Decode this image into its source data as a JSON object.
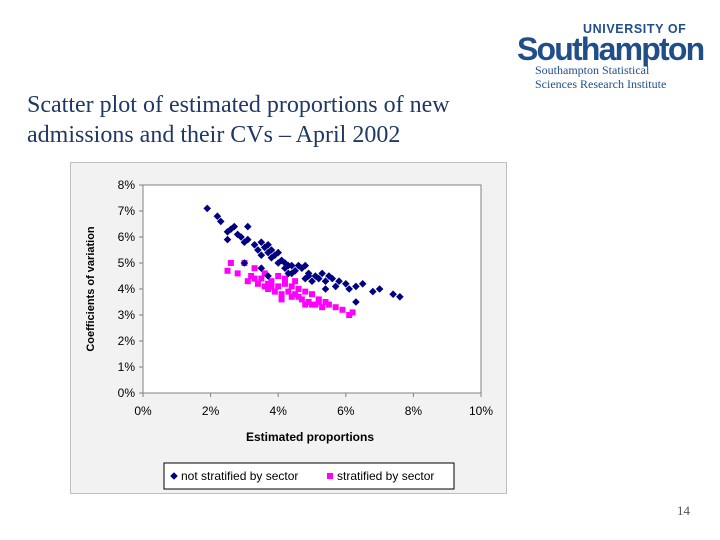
{
  "slide": {
    "title_line1": "Scatter plot of estimated proportions of new",
    "title_line2": "admissions and their CVs – April 2002",
    "page_number": "14"
  },
  "logo": {
    "line1": "UNIVERSITY OF",
    "line2": "Southampton",
    "line3": "Southampton Statistical",
    "line4": "Sciences Research Institute"
  },
  "colors": {
    "title": "#1f3864",
    "not_stratified": "#000080",
    "stratified": "#ff00ff",
    "frame_bg": "#f2f2f2",
    "plot_bg": "#ffffff"
  },
  "chart_data": {
    "type": "scatter",
    "xlabel": "Estimated proportions",
    "ylabel": "Coefficients of variation",
    "xlim": [
      0,
      10
    ],
    "ylim": [
      0,
      8
    ],
    "x_ticks": [
      0,
      2,
      4,
      6,
      8,
      10
    ],
    "y_ticks": [
      0,
      1,
      2,
      3,
      4,
      5,
      6,
      7,
      8
    ],
    "x_tick_labels": [
      "0%",
      "2%",
      "4%",
      "6%",
      "8%",
      "10%"
    ],
    "y_tick_labels": [
      "0%",
      "1%",
      "2%",
      "3%",
      "4%",
      "5%",
      "6%",
      "7%",
      "8%"
    ],
    "grid": false,
    "legend_position": "bottom",
    "series": [
      {
        "name": "not stratified by sector",
        "marker": "diamond",
        "color": "#000080",
        "points": [
          [
            1.9,
            7.1
          ],
          [
            2.2,
            6.8
          ],
          [
            2.3,
            6.6
          ],
          [
            2.5,
            6.2
          ],
          [
            2.6,
            6.3
          ],
          [
            2.7,
            6.4
          ],
          [
            2.5,
            5.9
          ],
          [
            2.8,
            6.1
          ],
          [
            2.9,
            6.0
          ],
          [
            3.0,
            5.8
          ],
          [
            3.1,
            5.9
          ],
          [
            3.1,
            6.4
          ],
          [
            3.3,
            5.7
          ],
          [
            3.4,
            5.5
          ],
          [
            3.5,
            5.8
          ],
          [
            3.5,
            5.3
          ],
          [
            3.6,
            5.6
          ],
          [
            3.7,
            5.4
          ],
          [
            3.7,
            5.7
          ],
          [
            3.8,
            5.2
          ],
          [
            3.8,
            5.5
          ],
          [
            3.9,
            5.3
          ],
          [
            4.0,
            5.4
          ],
          [
            4.0,
            5.0
          ],
          [
            4.1,
            5.1
          ],
          [
            4.2,
            4.8
          ],
          [
            4.2,
            5.0
          ],
          [
            4.3,
            4.9
          ],
          [
            4.4,
            4.6
          ],
          [
            4.4,
            4.9
          ],
          [
            4.5,
            4.7
          ],
          [
            4.6,
            4.9
          ],
          [
            4.7,
            4.8
          ],
          [
            4.8,
            4.4
          ],
          [
            4.8,
            4.9
          ],
          [
            4.9,
            4.6
          ],
          [
            5.0,
            4.3
          ],
          [
            5.1,
            4.5
          ],
          [
            5.2,
            4.4
          ],
          [
            5.3,
            4.6
          ],
          [
            5.4,
            4.3
          ],
          [
            5.5,
            4.5
          ],
          [
            5.6,
            4.4
          ],
          [
            5.7,
            4.1
          ],
          [
            5.8,
            4.3
          ],
          [
            6.0,
            4.2
          ],
          [
            6.1,
            4.0
          ],
          [
            6.3,
            4.1
          ],
          [
            6.5,
            4.2
          ],
          [
            6.8,
            3.9
          ],
          [
            7.0,
            4.0
          ],
          [
            7.4,
            3.8
          ],
          [
            7.6,
            3.7
          ],
          [
            3.0,
            5.0
          ],
          [
            3.5,
            4.8
          ],
          [
            3.7,
            4.5
          ],
          [
            4.3,
            4.6
          ],
          [
            6.3,
            3.5
          ],
          [
            5.4,
            4.0
          ],
          [
            4.9,
            4.5
          ]
        ]
      },
      {
        "name": "stratified by sector",
        "marker": "square",
        "color": "#ff00ff",
        "points": [
          [
            2.5,
            4.7
          ],
          [
            2.6,
            5.0
          ],
          [
            2.8,
            4.6
          ],
          [
            3.0,
            5.0
          ],
          [
            3.1,
            4.3
          ],
          [
            3.2,
            4.5
          ],
          [
            3.3,
            4.8
          ],
          [
            3.4,
            4.2
          ],
          [
            3.5,
            4.4
          ],
          [
            3.6,
            4.1
          ],
          [
            3.6,
            4.6
          ],
          [
            3.7,
            4.0
          ],
          [
            3.8,
            4.3
          ],
          [
            3.9,
            3.9
          ],
          [
            4.0,
            4.5
          ],
          [
            4.0,
            4.1
          ],
          [
            4.1,
            3.8
          ],
          [
            4.2,
            4.2
          ],
          [
            4.3,
            3.9
          ],
          [
            4.4,
            3.7
          ],
          [
            4.4,
            4.1
          ],
          [
            4.5,
            3.8
          ],
          [
            4.6,
            4.0
          ],
          [
            4.7,
            3.6
          ],
          [
            4.8,
            3.9
          ],
          [
            4.9,
            3.5
          ],
          [
            5.0,
            3.8
          ],
          [
            5.1,
            3.4
          ],
          [
            5.2,
            3.6
          ],
          [
            5.3,
            3.3
          ],
          [
            5.4,
            3.5
          ],
          [
            5.5,
            3.4
          ],
          [
            5.7,
            3.3
          ],
          [
            5.9,
            3.2
          ],
          [
            6.1,
            3.0
          ],
          [
            6.2,
            3.1
          ],
          [
            4.2,
            4.4
          ],
          [
            4.6,
            3.7
          ],
          [
            5.0,
            3.4
          ],
          [
            3.8,
            4.1
          ],
          [
            4.5,
            4.3
          ],
          [
            3.3,
            4.4
          ],
          [
            3.7,
            4.2
          ],
          [
            4.1,
            3.6
          ],
          [
            5.2,
            3.5
          ],
          [
            4.8,
            3.4
          ]
        ]
      }
    ]
  }
}
